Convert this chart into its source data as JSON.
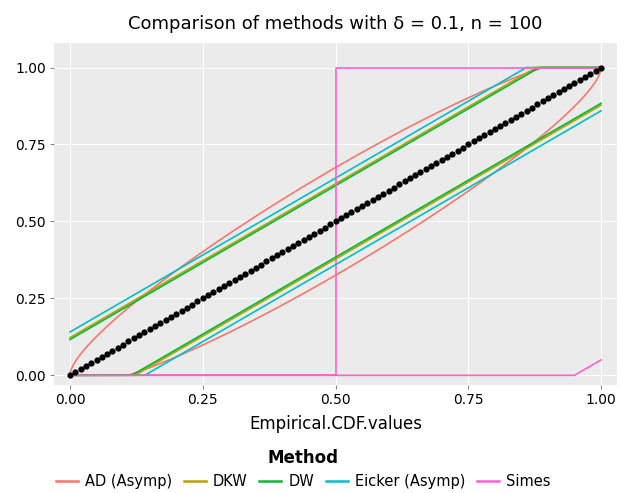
{
  "title": "Comparison of methods with δ = 0.1, n = 100",
  "xlabel": "Empirical.CDF.values",
  "n": 100,
  "delta": 0.1,
  "xlim": [
    -0.03,
    1.03
  ],
  "ylim": [
    -0.03,
    1.08
  ],
  "xticks": [
    0.0,
    0.25,
    0.5,
    0.75,
    1.0
  ],
  "yticks": [
    0.0,
    0.25,
    0.5,
    0.75,
    1.0
  ],
  "background_color": "#EBEBEB",
  "grid_color": "#FFFFFF",
  "colors": {
    "AD (Asymp)": "#F8766D",
    "DKW": "#B8A000",
    "DW": "#00BA38",
    "Eicker (Asymp)": "#00BFC4",
    "Simes": "#FF61CC"
  },
  "dot_color": "#000000",
  "dot_size": 4.5,
  "line_width": 1.2,
  "figsize": [
    6.4,
    4.93
  ],
  "dpi": 100
}
